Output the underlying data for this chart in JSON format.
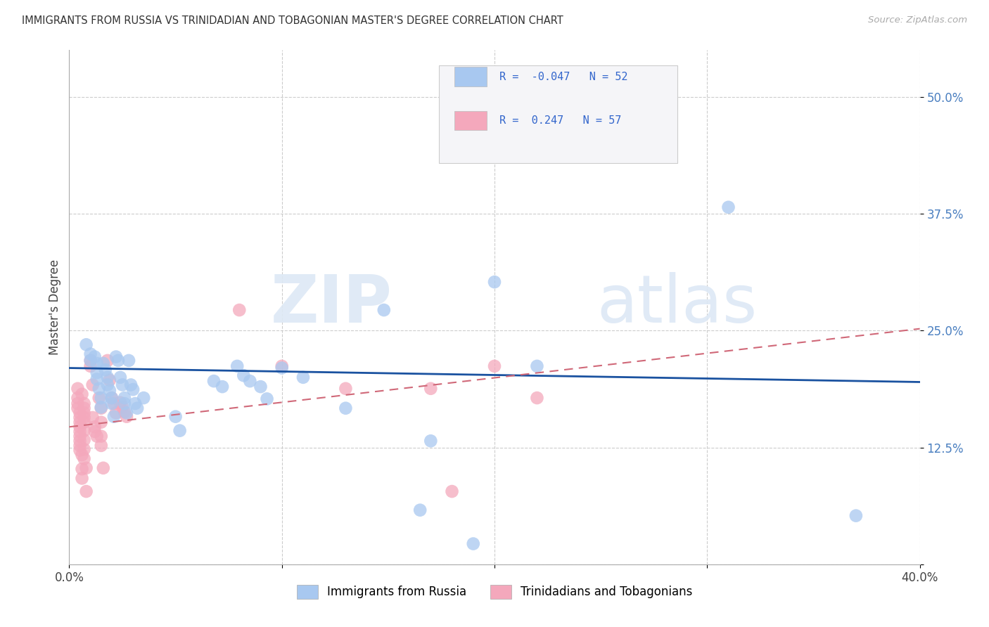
{
  "title": "IMMIGRANTS FROM RUSSIA VS TRINIDADIAN AND TOBAGONIAN MASTER'S DEGREE CORRELATION CHART",
  "source": "Source: ZipAtlas.com",
  "ylabel": "Master's Degree",
  "xlim": [
    0.0,
    0.4
  ],
  "ylim": [
    0.0,
    0.55
  ],
  "xticks": [
    0.0,
    0.1,
    0.2,
    0.3,
    0.4
  ],
  "xticklabels": [
    "0.0%",
    "",
    "",
    "",
    "40.0%"
  ],
  "yticks": [
    0.0,
    0.125,
    0.25,
    0.375,
    0.5
  ],
  "yticklabels": [
    "",
    "12.5%",
    "25.0%",
    "37.5%",
    "50.0%"
  ],
  "blue_R": -0.047,
  "blue_N": 52,
  "pink_R": 0.247,
  "pink_N": 57,
  "blue_color": "#a8c8f0",
  "pink_color": "#f4a8bc",
  "blue_line_color": "#1a52a0",
  "pink_line_color": "#d06878",
  "watermark_zip": "ZIP",
  "watermark_atlas": "atlas",
  "legend_label_blue": "Immigrants from Russia",
  "legend_label_pink": "Trinidadians and Tobagonians",
  "blue_scatter": [
    [
      0.008,
      0.235
    ],
    [
      0.01,
      0.225
    ],
    [
      0.01,
      0.218
    ],
    [
      0.012,
      0.222
    ],
    [
      0.013,
      0.215
    ],
    [
      0.013,
      0.205
    ],
    [
      0.013,
      0.198
    ],
    [
      0.014,
      0.188
    ],
    [
      0.015,
      0.178
    ],
    [
      0.015,
      0.168
    ],
    [
      0.016,
      0.215
    ],
    [
      0.017,
      0.208
    ],
    [
      0.018,
      0.2
    ],
    [
      0.018,
      0.192
    ],
    [
      0.019,
      0.186
    ],
    [
      0.02,
      0.178
    ],
    [
      0.02,
      0.172
    ],
    [
      0.021,
      0.158
    ],
    [
      0.022,
      0.222
    ],
    [
      0.023,
      0.218
    ],
    [
      0.024,
      0.2
    ],
    [
      0.025,
      0.192
    ],
    [
      0.026,
      0.178
    ],
    [
      0.026,
      0.172
    ],
    [
      0.027,
      0.162
    ],
    [
      0.028,
      0.218
    ],
    [
      0.029,
      0.192
    ],
    [
      0.03,
      0.187
    ],
    [
      0.031,
      0.172
    ],
    [
      0.032,
      0.167
    ],
    [
      0.035,
      0.178
    ],
    [
      0.05,
      0.158
    ],
    [
      0.052,
      0.143
    ],
    [
      0.068,
      0.196
    ],
    [
      0.072,
      0.19
    ],
    [
      0.079,
      0.212
    ],
    [
      0.082,
      0.202
    ],
    [
      0.085,
      0.196
    ],
    [
      0.09,
      0.19
    ],
    [
      0.093,
      0.177
    ],
    [
      0.1,
      0.21
    ],
    [
      0.11,
      0.2
    ],
    [
      0.13,
      0.167
    ],
    [
      0.148,
      0.272
    ],
    [
      0.165,
      0.058
    ],
    [
      0.17,
      0.132
    ],
    [
      0.19,
      0.022
    ],
    [
      0.2,
      0.302
    ],
    [
      0.22,
      0.212
    ],
    [
      0.31,
      0.382
    ],
    [
      0.37,
      0.052
    ],
    [
      0.23,
      0.502
    ]
  ],
  "pink_scatter": [
    [
      0.004,
      0.188
    ],
    [
      0.004,
      0.178
    ],
    [
      0.004,
      0.172
    ],
    [
      0.004,
      0.167
    ],
    [
      0.005,
      0.162
    ],
    [
      0.005,
      0.157
    ],
    [
      0.005,
      0.152
    ],
    [
      0.005,
      0.147
    ],
    [
      0.005,
      0.142
    ],
    [
      0.005,
      0.137
    ],
    [
      0.005,
      0.132
    ],
    [
      0.005,
      0.127
    ],
    [
      0.005,
      0.122
    ],
    [
      0.006,
      0.117
    ],
    [
      0.006,
      0.102
    ],
    [
      0.006,
      0.092
    ],
    [
      0.006,
      0.182
    ],
    [
      0.007,
      0.172
    ],
    [
      0.007,
      0.167
    ],
    [
      0.007,
      0.162
    ],
    [
      0.007,
      0.157
    ],
    [
      0.007,
      0.152
    ],
    [
      0.007,
      0.143
    ],
    [
      0.007,
      0.133
    ],
    [
      0.007,
      0.123
    ],
    [
      0.007,
      0.113
    ],
    [
      0.008,
      0.103
    ],
    [
      0.008,
      0.078
    ],
    [
      0.01,
      0.218
    ],
    [
      0.01,
      0.212
    ],
    [
      0.011,
      0.192
    ],
    [
      0.011,
      0.157
    ],
    [
      0.012,
      0.147
    ],
    [
      0.012,
      0.142
    ],
    [
      0.013,
      0.137
    ],
    [
      0.014,
      0.178
    ],
    [
      0.015,
      0.167
    ],
    [
      0.015,
      0.152
    ],
    [
      0.015,
      0.137
    ],
    [
      0.015,
      0.127
    ],
    [
      0.016,
      0.103
    ],
    [
      0.018,
      0.218
    ],
    [
      0.019,
      0.197
    ],
    [
      0.02,
      0.178
    ],
    [
      0.021,
      0.172
    ],
    [
      0.022,
      0.162
    ],
    [
      0.024,
      0.173
    ],
    [
      0.025,
      0.168
    ],
    [
      0.026,
      0.163
    ],
    [
      0.027,
      0.158
    ],
    [
      0.08,
      0.272
    ],
    [
      0.1,
      0.212
    ],
    [
      0.13,
      0.188
    ],
    [
      0.17,
      0.188
    ],
    [
      0.18,
      0.078
    ],
    [
      0.2,
      0.212
    ],
    [
      0.22,
      0.178
    ]
  ],
  "blue_trend_start_y": 0.21,
  "blue_trend_end_y": 0.195,
  "pink_trend_start_y": 0.147,
  "pink_trend_end_y": 0.252
}
